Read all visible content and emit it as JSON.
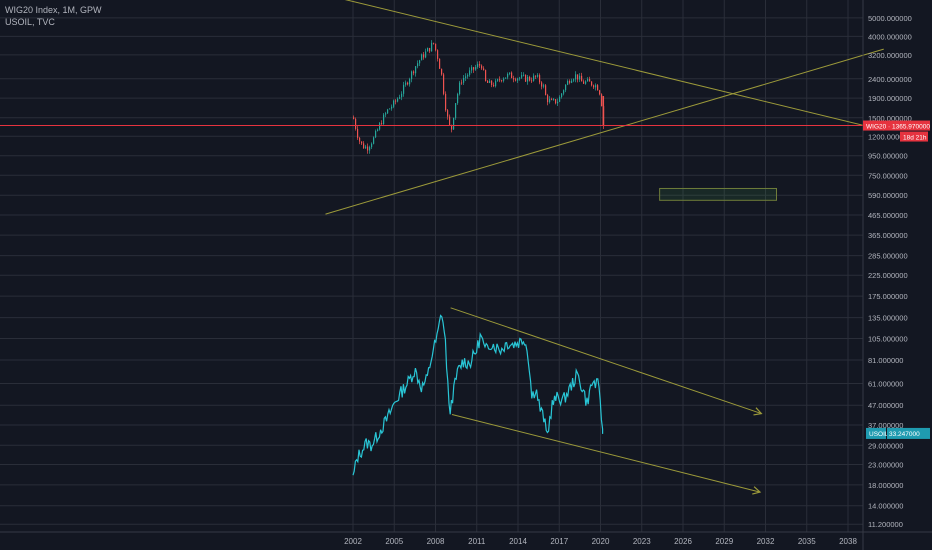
{
  "legend": {
    "main": "WIG20 Index, 1M, GPW",
    "sub": "USOIL, TVC"
  },
  "colors": {
    "background": "#131722",
    "grid": "#2a2e39",
    "axis_text": "#b2b5be",
    "candle_up": "#26a69a",
    "candle_down": "#ef5350",
    "usoil_line": "#29c6d6",
    "trendline": "#9c9a3a",
    "price_line": "#e6333f",
    "usoil_tag": "#1f9bb0",
    "box_fill": "rgba(76,175,80,0.12)",
    "box_stroke": "#6f7d3a"
  },
  "chart_data": [
    {
      "type": "line",
      "title": "WIG20 Index, 1M, GPW",
      "scale": "log",
      "render_style": "candlestick",
      "x_range": [
        2000.0,
        2040.6
      ],
      "ylim": [
        10.2,
        6200
      ],
      "x": [
        2002.0,
        2002.25,
        2002.5,
        2002.75,
        2003.0,
        2003.5,
        2004.0,
        2004.5,
        2005.0,
        2005.5,
        2006.0,
        2006.5,
        2007.0,
        2007.5,
        2007.8,
        2008.1,
        2008.4,
        2008.7,
        2008.9,
        2009.1,
        2009.4,
        2009.8,
        2010.2,
        2010.6,
        2011.0,
        2011.3,
        2011.6,
        2011.9,
        2012.3,
        2012.8,
        2013.3,
        2013.8,
        2014.3,
        2014.8,
        2015.3,
        2015.8,
        2016.0,
        2016.4,
        2016.9,
        2017.3,
        2017.8,
        2018.2,
        2018.6,
        2019.0,
        2019.5,
        2019.8,
        2020.0,
        2020.15
      ],
      "y": [
        1480,
        1250,
        1100,
        1060,
        1050,
        1180,
        1430,
        1650,
        1800,
        2050,
        2400,
        2800,
        3150,
        3450,
        3700,
        3150,
        2500,
        1700,
        1400,
        1280,
        1800,
        2350,
        2500,
        2650,
        2800,
        2850,
        2300,
        2250,
        2250,
        2450,
        2500,
        2450,
        2420,
        2400,
        2450,
        2200,
        1900,
        1800,
        1850,
        2150,
        2450,
        2500,
        2300,
        2300,
        2250,
        2150,
        1950,
        1365.97
      ],
      "annotations": [
        "1365.970000",
        "18d 21h"
      ]
    },
    {
      "type": "line",
      "title": "USOIL, TVC",
      "scale": "log",
      "x_range": [
        2000.0,
        2040.6
      ],
      "ylim": [
        10.2,
        6200
      ],
      "x": [
        2002.0,
        2002.3,
        2002.6,
        2003.0,
        2003.3,
        2003.6,
        2004.0,
        2004.5,
        2005.0,
        2005.5,
        2006.0,
        2006.5,
        2007.0,
        2007.4,
        2007.8,
        2008.1,
        2008.45,
        2008.7,
        2008.9,
        2009.0,
        2009.3,
        2009.6,
        2010.0,
        2010.5,
        2011.0,
        2011.3,
        2011.6,
        2012.0,
        2012.4,
        2012.8,
        2013.2,
        2013.6,
        2014.0,
        2014.5,
        2014.8,
        2015.0,
        2015.3,
        2015.6,
        2015.9,
        2016.1,
        2016.5,
        2016.9,
        2017.3,
        2017.8,
        2018.3,
        2018.8,
        2019.0,
        2019.4,
        2019.8,
        2020.0,
        2020.15
      ],
      "y": [
        19.5,
        25,
        27,
        30,
        29,
        31,
        35,
        40,
        48,
        55,
        62,
        72,
        58,
        65,
        90,
        105,
        145,
        105,
        60,
        42,
        55,
        70,
        80,
        78,
        92,
        110,
        90,
        100,
        95,
        92,
        100,
        98,
        100,
        105,
        80,
        52,
        58,
        45,
        40,
        32,
        48,
        52,
        50,
        58,
        68,
        55,
        48,
        62,
        60,
        50,
        33.247
      ],
      "annotations": [
        "USOIL",
        "33.247000"
      ]
    }
  ],
  "trendlines": [
    {
      "name": "wig-upper-descending",
      "from": [
        2000.0,
        6600
      ],
      "to": [
        2040.6,
        1290
      ]
    },
    {
      "name": "wig-lower-ascending",
      "from": [
        2000.0,
        470
      ],
      "to": [
        2040.6,
        3430
      ]
    },
    {
      "name": "oil-upper-channel",
      "from": [
        2009.1,
        152
      ],
      "to": [
        2031.7,
        42.5
      ]
    },
    {
      "name": "oil-lower-channel",
      "from": [
        2009.2,
        42.0
      ],
      "to": [
        2031.6,
        16.5
      ]
    }
  ],
  "range_box": {
    "from": [
      2024.3,
      640
    ],
    "to": [
      2032.8,
      555
    ]
  },
  "y_axis": {
    "ticks": [
      5000,
      4000,
      3200,
      2400,
      1900,
      1500,
      1200,
      950,
      750,
      590,
      465,
      365,
      285,
      225,
      175,
      135,
      105,
      81,
      61,
      47,
      37,
      29,
      23,
      18,
      14,
      11.2
    ],
    "labels": [
      "5000.000000",
      "4000.000000",
      "3200.000000",
      "2400.000000",
      "1900.000000",
      "1500.000000",
      "1200.000000",
      "950.000000",
      "750.000000",
      "590.000000",
      "465.000000",
      "365.000000",
      "285.000000",
      "225.000000",
      "175.000000",
      "135.000000",
      "105.000000",
      "81.000000",
      "61.000000",
      "47.000000",
      "37.000000",
      "29.000000",
      "23.000000",
      "18.000000",
      "14.000000",
      "11.200000"
    ]
  },
  "x_axis": {
    "ticks": [
      2002,
      2005,
      2008,
      2011,
      2014,
      2017,
      2020,
      2023,
      2026,
      2029,
      2032,
      2035,
      2038
    ],
    "labels": [
      "2002",
      "2005",
      "2008",
      "2011",
      "2014",
      "2017",
      "2020",
      "2023",
      "2026",
      "2029",
      "2032",
      "2035",
      "2038"
    ]
  },
  "tags": {
    "wig_symbol": "WIG20",
    "wig_price": "1365.970000",
    "wig_countdown": "18d 21h",
    "oil_symbol": "USOIL",
    "oil_price": "33.247000"
  }
}
